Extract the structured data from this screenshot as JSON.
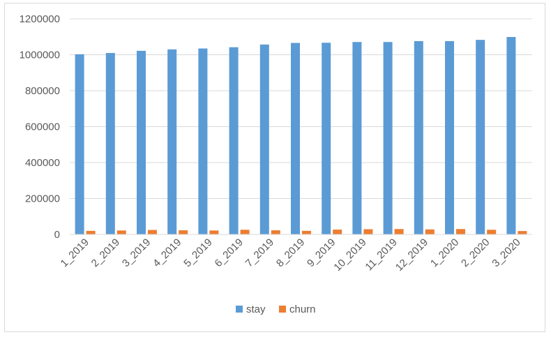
{
  "chart_data": {
    "type": "bar",
    "title": "",
    "xlabel": "",
    "ylabel": "",
    "categories": [
      "1_2019",
      "2_2019",
      "3_2019",
      "4_2019",
      "5_2019",
      "6_2019",
      "7_2019",
      "8_2019",
      "9_2019",
      "10_2019",
      "11_2019",
      "12_2019",
      "1_2020",
      "2_2020",
      "3_2020"
    ],
    "series": [
      {
        "name": "stay",
        "color": "#5b9bd5",
        "values": [
          1003000,
          1010000,
          1022000,
          1030000,
          1035000,
          1042000,
          1057000,
          1066000,
          1067000,
          1071000,
          1071000,
          1076000,
          1076000,
          1083000,
          1099000
        ]
      },
      {
        "name": "churn",
        "color": "#ed7d31",
        "values": [
          20000,
          22000,
          25000,
          23000,
          22000,
          26000,
          23000,
          20000,
          27000,
          29000,
          30000,
          28000,
          30000,
          26000,
          19000
        ]
      }
    ],
    "ylim": [
      0,
      1200000
    ],
    "yticks": [
      "0",
      "200000",
      "400000",
      "600000",
      "800000",
      "1000000",
      "1200000"
    ],
    "grid": true,
    "legend_position": "bottom"
  }
}
